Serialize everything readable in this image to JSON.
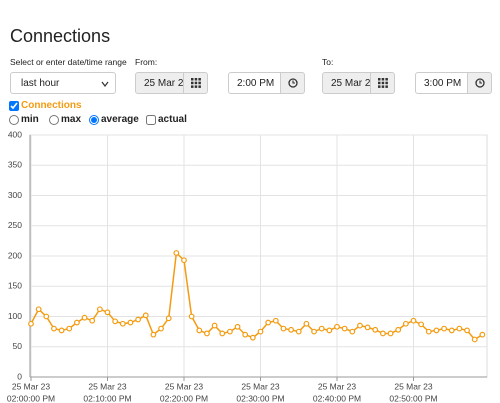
{
  "header": {
    "title": "Connections"
  },
  "form": {
    "range_label": "Select or enter date/time range",
    "range_value": "last hour",
    "from_label": "From:",
    "from_date": "25 Mar 2",
    "from_time": "2:00 PM",
    "to_label": "To:",
    "to_date": "25 Mar 2",
    "to_time": "3:00 PM"
  },
  "modes": [
    {
      "label": "min",
      "selected": false
    },
    {
      "label": "max",
      "selected": false
    },
    {
      "label": "average",
      "selected": true
    },
    {
      "label": "actual",
      "selected": false
    }
  ],
  "chart_data": {
    "type": "line",
    "categories": [
      [
        "25 Mar 23",
        "02:00:00 PM"
      ],
      null,
      null,
      null,
      null,
      null,
      null,
      null,
      null,
      null,
      [
        "25 Mar 23",
        "02:10:00 PM"
      ],
      null,
      null,
      null,
      null,
      null,
      null,
      null,
      null,
      null,
      [
        "25 Mar 23",
        "02:20:00 PM"
      ],
      null,
      null,
      null,
      null,
      null,
      null,
      null,
      null,
      null,
      [
        "25 Mar 23",
        "02:30:00 PM"
      ],
      null,
      null,
      null,
      null,
      null,
      null,
      null,
      null,
      null,
      [
        "25 Mar 23",
        "02:40:00 PM"
      ],
      null,
      null,
      null,
      null,
      null,
      null,
      null,
      null,
      null,
      [
        "25 Mar 23",
        "02:50:00 PM"
      ],
      null,
      null,
      null,
      null,
      null,
      null,
      null,
      null,
      null
    ],
    "series": [
      {
        "name": "Connections",
        "color": "#f39c12",
        "visible": true,
        "values": [
          88,
          112,
          100,
          80,
          77,
          80,
          90,
          98,
          93,
          112,
          107,
          92,
          88,
          90,
          95,
          102,
          70,
          80,
          97,
          205,
          193,
          100,
          77,
          72,
          85,
          72,
          75,
          83,
          70,
          65,
          75,
          90,
          93,
          80,
          78,
          75,
          88,
          75,
          80,
          77,
          83,
          80,
          75,
          85,
          82,
          78,
          72,
          72,
          78,
          88,
          93,
          87,
          75,
          77,
          80,
          77,
          80,
          77,
          62,
          70
        ]
      }
    ],
    "ylim": [
      0,
      400
    ],
    "yticks": [
      0,
      50,
      100,
      150,
      200,
      250,
      300,
      350,
      400
    ],
    "grid": true
  }
}
